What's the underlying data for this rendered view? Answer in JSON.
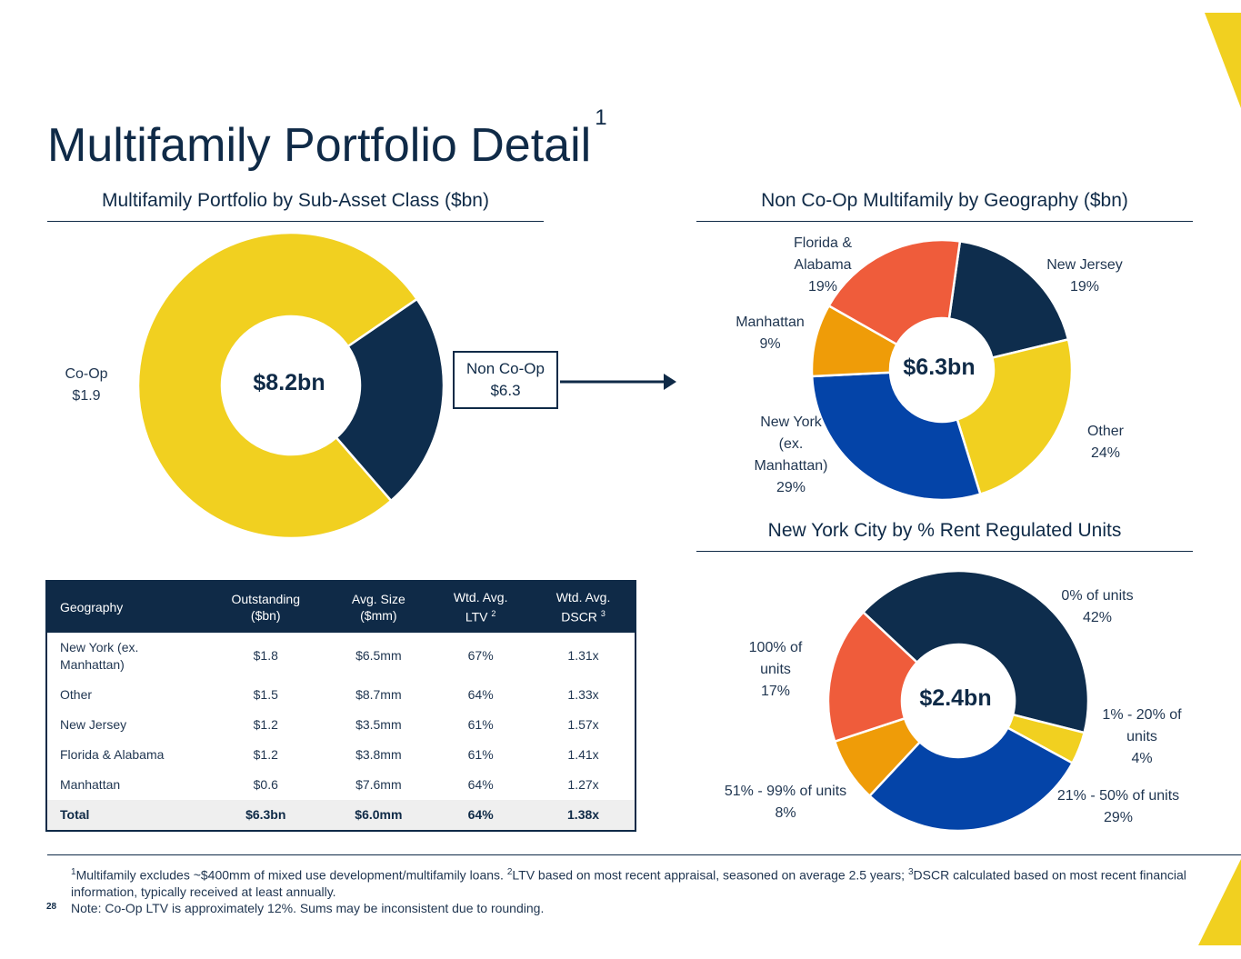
{
  "title": "Multifamily Portfolio Detail",
  "title_footnote": "1",
  "colors": {
    "navy": "#0e2d4d",
    "yellow": "#f1d020",
    "blue": "#0444a8",
    "orange": "#ef9c08",
    "red_orange": "#ef5c3b"
  },
  "chart_data": [
    {
      "type": "pie",
      "title": "Multifamily Portfolio by Sub-Asset Class ($bn)",
      "center_label": "$8.2bn",
      "slices": [
        {
          "name": "Co-Op",
          "value": 1.9,
          "label": "$1.9",
          "color": "#0e2d4d"
        },
        {
          "name": "Non Co-Op",
          "value": 6.3,
          "label": "$6.3",
          "color": "#f1d020"
        }
      ]
    },
    {
      "type": "pie",
      "title": "Non Co-Op Multifamily by Geography ($bn)",
      "center_label": "$6.3bn",
      "slices": [
        {
          "name": "New Jersey",
          "value": 19,
          "label": "19%",
          "color": "#0e2d4d"
        },
        {
          "name": "Other",
          "value": 24,
          "label": "24%",
          "color": "#f1d020"
        },
        {
          "name": "New York (ex. Manhattan)",
          "value": 29,
          "label": "29%",
          "color": "#0444a8"
        },
        {
          "name": "Manhattan",
          "value": 9,
          "label": "9%",
          "color": "#ef9c08"
        },
        {
          "name": "Florida & Alabama",
          "value": 19,
          "label": "19%",
          "color": "#ef5c3b"
        }
      ]
    },
    {
      "type": "pie",
      "title": "New York City by % Rent Regulated Units",
      "center_label": "$2.4bn",
      "slices": [
        {
          "name": "0% of units",
          "value": 42,
          "label": "42%",
          "color": "#0e2d4d"
        },
        {
          "name": "1% - 20% of units",
          "value": 4,
          "label": "4%",
          "color": "#f1d020"
        },
        {
          "name": "21% - 50% of units",
          "value": 29,
          "label": "29%",
          "color": "#0444a8"
        },
        {
          "name": "51% - 99% of units",
          "value": 8,
          "label": "8%",
          "color": "#ef9c08"
        },
        {
          "name": "100% of units",
          "value": 17,
          "label": "17%",
          "color": "#ef5c3b"
        }
      ]
    }
  ],
  "chart1_labels": {
    "coop_line1": "Co-Op",
    "coop_line2": "$1.9",
    "noncoop_line1": "Non Co-Op",
    "noncoop_line2": "$6.3"
  },
  "chart2_labels": {
    "fl_1": "Florida &",
    "fl_2": "Alabama",
    "fl_3": "19%",
    "nj_1": "New Jersey",
    "nj_2": "19%",
    "mh_1": "Manhattan",
    "mh_2": "9%",
    "ny_1": "New York",
    "ny_2": "(ex.",
    "ny_3": "Manhattan)",
    "ny_4": "29%",
    "ot_1": "Other",
    "ot_2": "24%"
  },
  "chart3_labels": {
    "z_1": "0% of units",
    "z_2": "42%",
    "h_1": "100% of",
    "h_2": "units",
    "h_3": "17%",
    "a_1": "1% - 20% of",
    "a_2": "units",
    "a_3": "4%",
    "b_1": "21% - 50% of units",
    "b_2": "29%",
    "c_1": "51% - 99% of units",
    "c_2": "8%"
  },
  "table": {
    "headers": [
      [
        "Geography",
        ""
      ],
      [
        "Outstanding",
        "($bn)"
      ],
      [
        "Avg. Size",
        "($mm)"
      ],
      [
        "Wtd. Avg.",
        "LTV",
        "2"
      ],
      [
        "Wtd. Avg.",
        "DSCR",
        "3"
      ]
    ],
    "rows": [
      [
        "New York (ex. Manhattan)",
        "$1.8",
        "$6.5mm",
        "67%",
        "1.31x"
      ],
      [
        "Other",
        "$1.5",
        "$8.7mm",
        "64%",
        "1.33x"
      ],
      [
        "New Jersey",
        "$1.2",
        "$3.5mm",
        "61%",
        "1.57x"
      ],
      [
        "Florida & Alabama",
        "$1.2",
        "$3.8mm",
        "61%",
        "1.41x"
      ],
      [
        "Manhattan",
        "$0.6",
        "$7.6mm",
        "64%",
        "1.27x"
      ]
    ],
    "total": [
      "Total",
      "$6.3bn",
      "$6.0mm",
      "64%",
      "1.38x"
    ]
  },
  "footnotes": {
    "n1_mark": "1",
    "n1": "Multifamily excludes ~$400mm of mixed use development/multifamily loans.",
    "n2_mark": "2",
    "n2": "LTV based on most recent appraisal, seasoned on average 2.5 years;",
    "n3_mark": "3",
    "n3": "DSCR calculated based on most recent financial information, typically received at least annually.",
    "note": "Note: Co-Op LTV is approximately 12%.  Sums may be inconsistent due to rounding."
  },
  "page_number": "28"
}
